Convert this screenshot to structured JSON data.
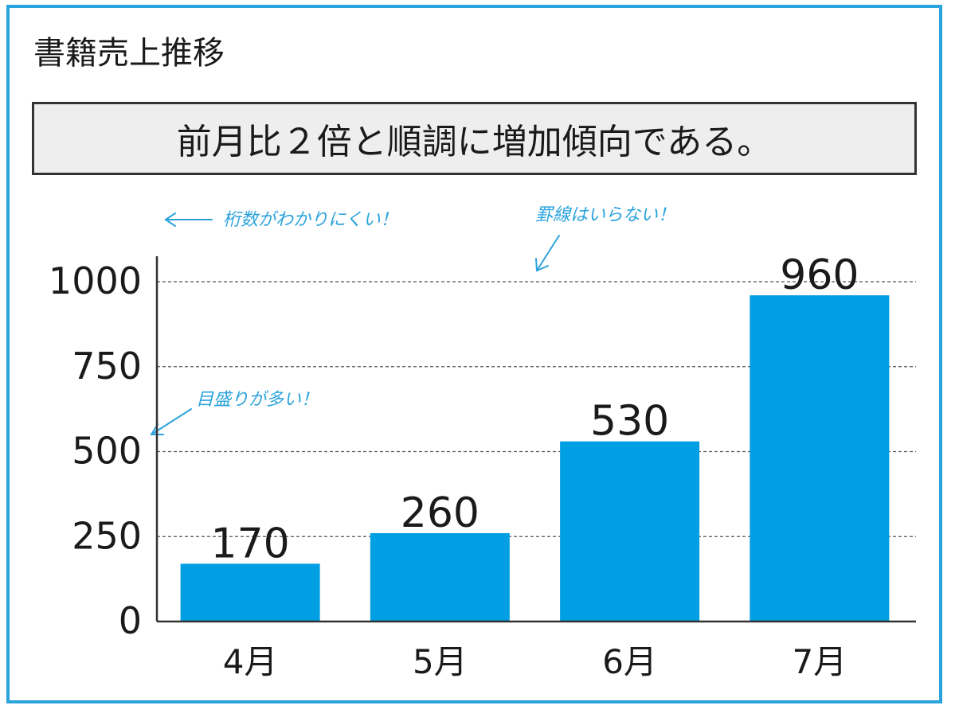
{
  "title": "書籍売上推移",
  "message": "前月比２倍と順調に増加傾向である。",
  "annotations": {
    "digits": "桁数がわかりにくい！",
    "gridlines": "罫線はいらない！",
    "ticks": "目盛りが多い！"
  },
  "colors": {
    "bar": "#009fe3",
    "frame": "#2ba3dc",
    "annotation": "#2ba3dc"
  },
  "chart_data": {
    "type": "bar",
    "categories": [
      "4月",
      "5月",
      "6月",
      "7月"
    ],
    "values": [
      170,
      260,
      530,
      960
    ],
    "data_labels": [
      "170",
      "260",
      "530",
      "960"
    ],
    "y_ticks": [
      0,
      250,
      500,
      750,
      1000
    ],
    "ylim": [
      0,
      1000
    ],
    "grid": true,
    "title": "書籍売上推移",
    "xlabel": "",
    "ylabel": ""
  }
}
